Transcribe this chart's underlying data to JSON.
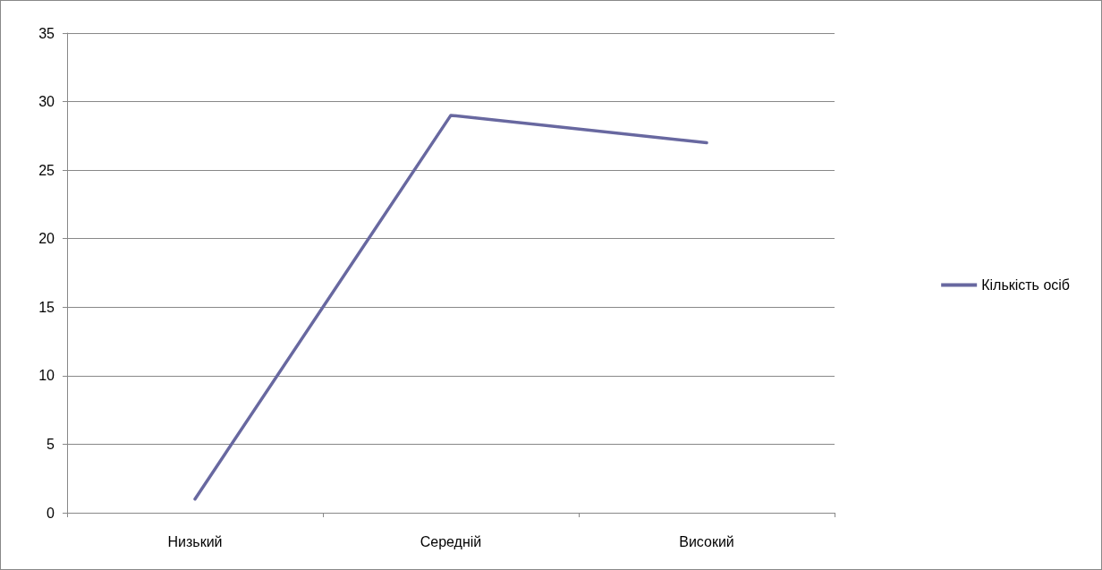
{
  "chart_data": {
    "type": "line",
    "categories": [
      "Низький",
      "Середній",
      "Високий"
    ],
    "series": [
      {
        "name": "Кількість осіб",
        "color": "#6868a0",
        "values": [
          1,
          29,
          27
        ]
      }
    ],
    "ylim": [
      0,
      35
    ],
    "yticks": [
      0,
      5,
      10,
      15,
      20,
      25,
      30,
      35
    ],
    "grid": "y",
    "legend": "right",
    "marker": "none",
    "line_style": "solid"
  }
}
